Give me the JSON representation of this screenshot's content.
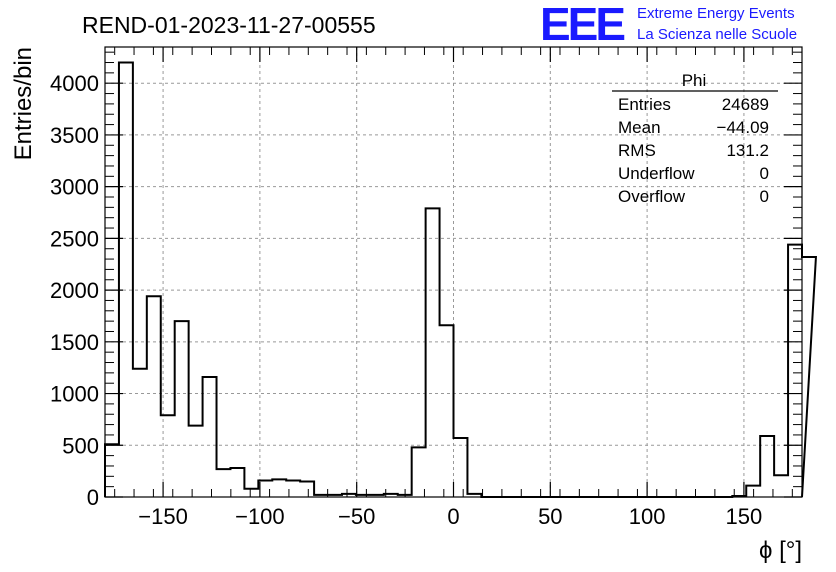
{
  "header": {
    "run_title": "REND-01-2023-11-27-00555",
    "logo_text": "EEE",
    "logo_line1": "Extreme Energy Events",
    "logo_line2": "La Scienza nelle Scuole"
  },
  "stats_box": {
    "title": "Phi",
    "rows": [
      {
        "label": "Entries",
        "value": "24689"
      },
      {
        "label": "Mean",
        "value": "−44.09"
      },
      {
        "label": "RMS",
        "value": "131.2"
      },
      {
        "label": "Underflow",
        "value": "0"
      },
      {
        "label": "Overflow",
        "value": "0"
      }
    ]
  },
  "chart_data": {
    "type": "bar",
    "histogram": "step",
    "title": "REND-01-2023-11-27-00555",
    "xlabel": "ϕ [°]",
    "ylabel": "Entries/bin",
    "xlim": [
      -180,
      180
    ],
    "ylim": [
      0,
      4350
    ],
    "x_ticks": [
      -150,
      -100,
      -50,
      0,
      50,
      100,
      150
    ],
    "x_tick_labels": [
      "−150",
      "−100",
      "−50",
      "0",
      "50",
      "100",
      "150"
    ],
    "y_ticks": [
      0,
      500,
      1000,
      1500,
      2000,
      2500,
      3000,
      3500,
      4000
    ],
    "grid": true,
    "bin_edges_start": -180,
    "bin_width": 7.2,
    "values": [
      510,
      4200,
      1240,
      1940,
      790,
      1700,
      690,
      1160,
      270,
      280,
      80,
      160,
      170,
      160,
      150,
      20,
      20,
      30,
      20,
      20,
      30,
      20,
      480,
      2790,
      1660,
      570,
      30,
      0,
      0,
      0,
      0,
      0,
      0,
      0,
      0,
      0,
      0,
      0,
      0,
      0,
      0,
      0,
      0,
      0,
      0,
      10,
      110,
      590,
      210,
      2440,
      2320
    ]
  },
  "colors": {
    "line": "#000000",
    "grid": "#999999",
    "logo": "#1a1aff"
  }
}
